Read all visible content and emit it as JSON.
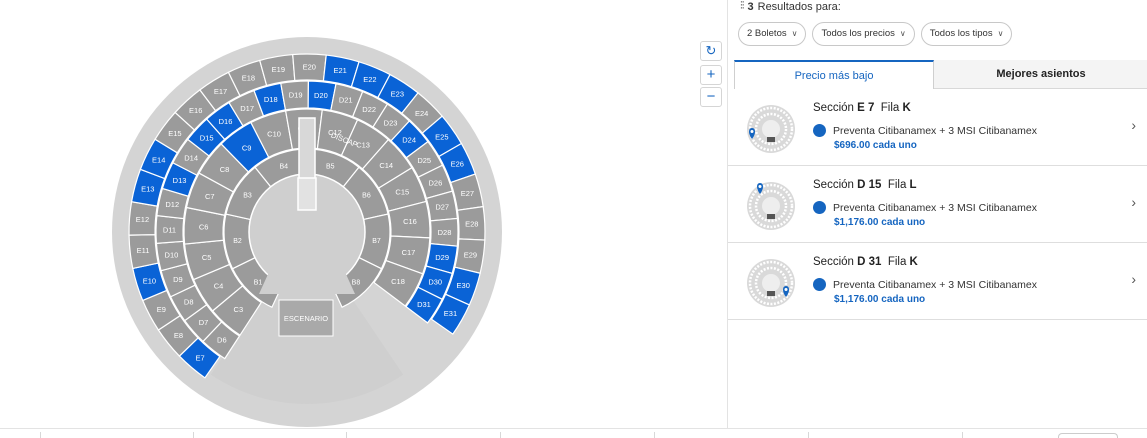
{
  "header": {
    "results_count": "3",
    "results_label": "Resultados para:"
  },
  "filters": [
    {
      "label": "2 Boletos"
    },
    {
      "label": "Todos los precios"
    },
    {
      "label": "Todos los tipos"
    }
  ],
  "tabs": [
    {
      "label": "Precio más bajo",
      "active": true
    },
    {
      "label": "Mejores asientos",
      "active": false
    }
  ],
  "results": [
    {
      "section_label": "Sección",
      "section": "E 7",
      "row_label": "Fila",
      "row": "K",
      "offer": "Preventa Citibanamex + 3 MSI Citibanamex",
      "price": "$696.00 cada uno"
    },
    {
      "section_label": "Sección",
      "section": "D 15",
      "row_label": "Fila",
      "row": "L",
      "offer": "Preventa Citibanamex + 3 MSI Citibanamex",
      "price": "$1,176.00 cada uno"
    },
    {
      "section_label": "Sección",
      "section": "D 31",
      "row_label": "Fila",
      "row": "K",
      "offer": "Preventa Citibanamex + 3 MSI Citibanamex",
      "price": "$1,176.00 cada uno"
    }
  ],
  "map": {
    "stage_label": "ESCENARIO",
    "discap_label": "DISCAP",
    "colors": {
      "available": "#0a63d6",
      "unavailable": "#9b9b9b",
      "outer": "#d4d4d4",
      "floor": "#cfcfcf"
    },
    "rings": {
      "E": [
        "E7",
        "E8",
        "E9",
        "E10",
        "E11",
        "E12",
        "E13",
        "E14",
        "E15",
        "E16",
        "E17",
        "E18",
        "E19",
        "E20",
        "E21",
        "E22",
        "E23",
        "E24",
        "E25",
        "E26",
        "E27",
        "E28",
        "E29",
        "E30",
        "E31"
      ],
      "D": [
        "D6",
        "D7",
        "D8",
        "D9",
        "D10",
        "D11",
        "D12",
        "D13",
        "D14",
        "D15",
        "D16",
        "D17",
        "D18",
        "D19",
        "D20",
        "D21",
        "D22",
        "D23",
        "D24",
        "D25",
        "D26",
        "D27",
        "D28",
        "D29",
        "D30",
        "D31"
      ],
      "C": [
        "C3",
        "C4",
        "C5",
        "C6",
        "C7",
        "C8",
        "C9",
        "C10",
        "C11",
        "C12",
        "C13",
        "C14",
        "C15",
        "C16",
        "C17",
        "C18"
      ],
      "B": [
        "B1",
        "B2",
        "B3",
        "B4",
        "B5",
        "B6",
        "B7",
        "B8"
      ]
    },
    "available_sections": [
      "E7",
      "E10",
      "E13",
      "E14",
      "E21",
      "E22",
      "E23",
      "E25",
      "E26",
      "E30",
      "E31",
      "D13",
      "D15",
      "D16",
      "D18",
      "D20",
      "D24",
      "D29",
      "D30",
      "D31",
      "C9"
    ]
  }
}
